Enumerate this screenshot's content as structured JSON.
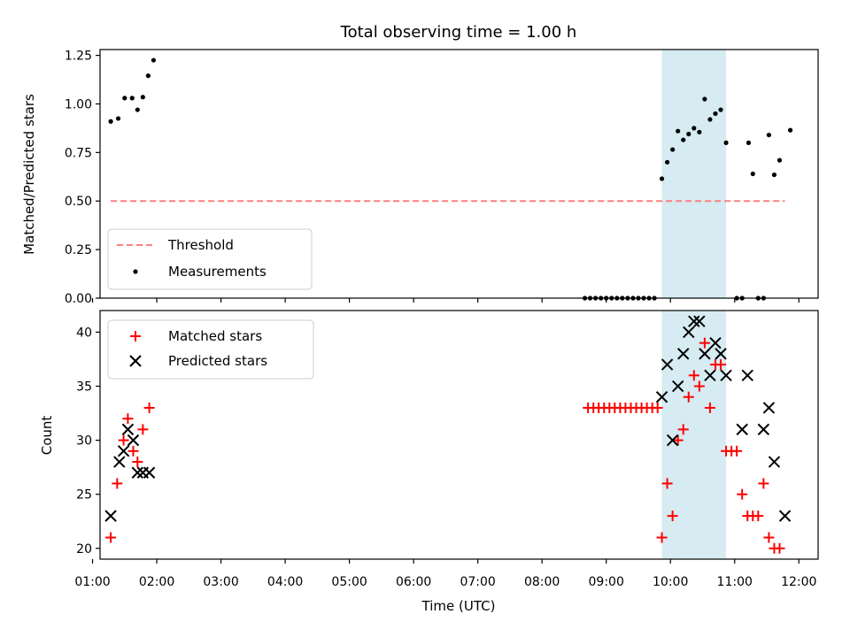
{
  "chart_data": [
    {
      "type": "scatter",
      "title": "Total observing time = 1.00 h",
      "xlabel": "",
      "ylabel": "Matched/Predicted stars",
      "xlim": [
        "01:07",
        "12:18"
      ],
      "ylim": [
        0,
        1.28
      ],
      "yticks": [
        "0.00",
        "0.25",
        "0.50",
        "0.75",
        "1.00",
        "1.25"
      ],
      "grid": false,
      "shaded_interval": [
        "09:52",
        "10:52"
      ],
      "legend": {
        "position": "lower-left",
        "entries": [
          "Threshold",
          "Measurements"
        ]
      },
      "threshold": {
        "name": "Threshold",
        "y": 0.5,
        "x": [
          "01:17",
          "11:47"
        ],
        "color": "#ff7f7f",
        "style": "dashed"
      },
      "series": [
        {
          "name": "Measurements",
          "color": "#000000",
          "marker": "dot",
          "points": [
            [
              "01:17",
              0.91
            ],
            [
              "01:24",
              0.925
            ],
            [
              "01:30",
              1.03
            ],
            [
              "01:37",
              1.03
            ],
            [
              "01:42",
              0.97
            ],
            [
              "01:47",
              1.035
            ],
            [
              "01:52",
              1.145
            ],
            [
              "01:57",
              1.225
            ],
            [
              "08:40",
              0.0
            ],
            [
              "08:45",
              0.0
            ],
            [
              "08:50",
              0.0
            ],
            [
              "08:55",
              0.0
            ],
            [
              "09:00",
              0.0
            ],
            [
              "09:05",
              0.0
            ],
            [
              "09:10",
              0.0
            ],
            [
              "09:15",
              0.0
            ],
            [
              "09:20",
              0.0
            ],
            [
              "09:25",
              0.0
            ],
            [
              "09:30",
              0.0
            ],
            [
              "09:35",
              0.0
            ],
            [
              "09:40",
              0.0
            ],
            [
              "09:45",
              0.0
            ],
            [
              "09:52",
              0.615
            ],
            [
              "09:57",
              0.7
            ],
            [
              "10:02",
              0.765
            ],
            [
              "10:07",
              0.86
            ],
            [
              "10:12",
              0.815
            ],
            [
              "10:17",
              0.845
            ],
            [
              "10:22",
              0.875
            ],
            [
              "10:27",
              0.855
            ],
            [
              "10:32",
              1.025
            ],
            [
              "10:37",
              0.92
            ],
            [
              "10:42",
              0.95
            ],
            [
              "10:47",
              0.97
            ],
            [
              "10:52",
              0.8
            ],
            [
              "11:02",
              0.0
            ],
            [
              "11:07",
              0.0
            ],
            [
              "11:13",
              0.8
            ],
            [
              "11:17",
              0.64
            ],
            [
              "11:22",
              0.0
            ],
            [
              "11:27",
              0.0
            ],
            [
              "11:32",
              0.84
            ],
            [
              "11:37",
              0.635
            ],
            [
              "11:42",
              0.71
            ],
            [
              "11:52",
              0.865
            ]
          ]
        }
      ]
    },
    {
      "type": "scatter",
      "title": "",
      "xlabel": "Time (UTC)",
      "ylabel": "Count",
      "xlim": [
        "01:07",
        "12:18"
      ],
      "ylim": [
        19,
        42
      ],
      "yticks": [
        "20",
        "25",
        "30",
        "35",
        "40"
      ],
      "xticks": [
        "01:00",
        "02:00",
        "03:00",
        "04:00",
        "05:00",
        "06:00",
        "07:00",
        "08:00",
        "09:00",
        "10:00",
        "11:00",
        "12:00"
      ],
      "grid": false,
      "shaded_interval": [
        "09:52",
        "10:52"
      ],
      "legend": {
        "position": "upper-left",
        "entries": [
          "Matched stars",
          "Predicted stars"
        ]
      },
      "series": [
        {
          "name": "Matched stars",
          "color": "#ff0000",
          "marker": "plus",
          "points": [
            [
              "01:17",
              21
            ],
            [
              "01:23",
              26
            ],
            [
              "01:29",
              30
            ],
            [
              "01:33",
              32
            ],
            [
              "01:38",
              29
            ],
            [
              "01:42",
              28
            ],
            [
              "01:47",
              31
            ],
            [
              "01:53",
              33
            ],
            [
              "08:43",
              33
            ],
            [
              "08:48",
              33
            ],
            [
              "08:53",
              33
            ],
            [
              "08:58",
              33
            ],
            [
              "09:03",
              33
            ],
            [
              "09:08",
              33
            ],
            [
              "09:13",
              33
            ],
            [
              "09:18",
              33
            ],
            [
              "09:23",
              33
            ],
            [
              "09:28",
              33
            ],
            [
              "09:33",
              33
            ],
            [
              "09:38",
              33
            ],
            [
              "09:43",
              33
            ],
            [
              "09:48",
              33
            ],
            [
              "09:52",
              21
            ],
            [
              "09:57",
              26
            ],
            [
              "10:02",
              23
            ],
            [
              "10:07",
              30
            ],
            [
              "10:12",
              31
            ],
            [
              "10:17",
              34
            ],
            [
              "10:22",
              36
            ],
            [
              "10:27",
              35
            ],
            [
              "10:32",
              39
            ],
            [
              "10:37",
              33
            ],
            [
              "10:42",
              37
            ],
            [
              "10:47",
              37
            ],
            [
              "10:52",
              29
            ],
            [
              "10:57",
              29
            ],
            [
              "11:02",
              29
            ],
            [
              "11:07",
              25
            ],
            [
              "11:12",
              23
            ],
            [
              "11:17",
              23
            ],
            [
              "11:22",
              23
            ],
            [
              "11:27",
              26
            ],
            [
              "11:32",
              21
            ],
            [
              "11:37",
              20
            ],
            [
              "11:42",
              20
            ]
          ]
        },
        {
          "name": "Predicted stars",
          "color": "#000000",
          "marker": "x",
          "points": [
            [
              "01:17",
              23
            ],
            [
              "01:25",
              28
            ],
            [
              "01:29",
              29
            ],
            [
              "01:33",
              31
            ],
            [
              "01:38",
              30
            ],
            [
              "01:42",
              27
            ],
            [
              "01:47",
              27
            ],
            [
              "01:53",
              27
            ],
            [
              "09:52",
              34
            ],
            [
              "09:57",
              37
            ],
            [
              "10:02",
              30
            ],
            [
              "10:07",
              35
            ],
            [
              "10:12",
              38
            ],
            [
              "10:17",
              40
            ],
            [
              "10:22",
              41
            ],
            [
              "10:27",
              41
            ],
            [
              "10:32",
              38
            ],
            [
              "10:37",
              36
            ],
            [
              "10:42",
              39
            ],
            [
              "10:47",
              38
            ],
            [
              "10:52",
              36
            ],
            [
              "11:07",
              31
            ],
            [
              "11:12",
              36
            ],
            [
              "11:27",
              31
            ],
            [
              "11:32",
              33
            ],
            [
              "11:37",
              28
            ],
            [
              "11:47",
              23
            ]
          ]
        }
      ]
    }
  ]
}
